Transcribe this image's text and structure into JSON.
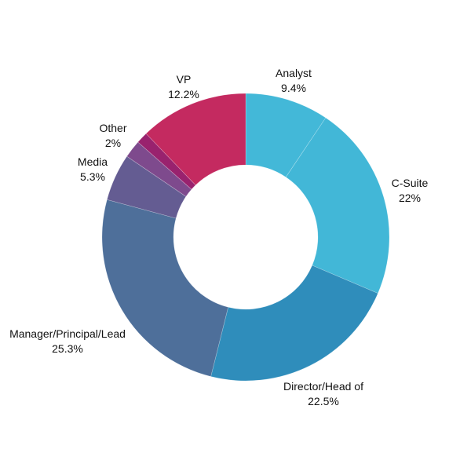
{
  "chart_data": {
    "type": "pie",
    "donut": true,
    "start": "top",
    "direction": "clockwise",
    "slices": [
      {
        "label": "Analyst",
        "value": 9.4,
        "value_label": "9.4%",
        "color": "#43b8d8"
      },
      {
        "label": "C-Suite",
        "value": 22,
        "value_label": "22%",
        "color": "#42b7d7"
      },
      {
        "label": "Director/Head of",
        "value": 22.5,
        "value_label": "22.5%",
        "color": "#2f8dbb"
      },
      {
        "label": "Manager/Principal/Lead",
        "value": 25.3,
        "value_label": "25.3%",
        "color": "#4e6f9a"
      },
      {
        "label": "Media",
        "value": 5.3,
        "value_label": "5.3%",
        "color": "#645c92"
      },
      {
        "label": "Other",
        "value": 2,
        "value_label": "2%",
        "color": "#7e4a8d"
      },
      {
        "label": "",
        "value": 1.3,
        "value_label": "",
        "color": "#99226e"
      },
      {
        "label": "VP",
        "value": 12.2,
        "value_label": "12.2%",
        "color": "#c42a60"
      }
    ]
  }
}
